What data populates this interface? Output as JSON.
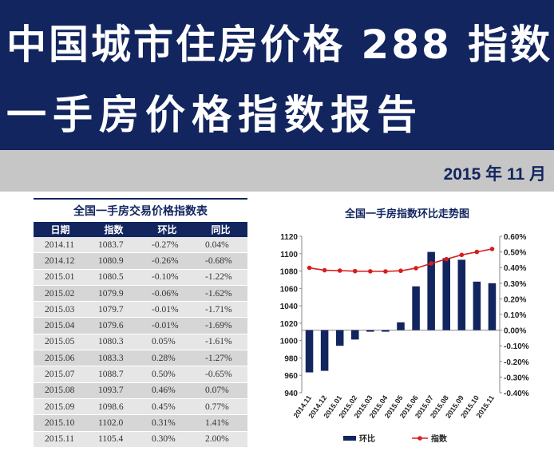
{
  "header": {
    "title_line1": "中国城市住房价格 288 指数",
    "title_line2": "一手房价格指数报告",
    "date": "2015 年 11 月"
  },
  "table": {
    "title": "全国一手房交易价格指数表",
    "headers": [
      "日期",
      "指数",
      "环比",
      "同比"
    ],
    "rows": [
      [
        "2014.11",
        "1083.7",
        "-0.27%",
        "0.04%"
      ],
      [
        "2014.12",
        "1080.9",
        "-0.26%",
        "-0.68%"
      ],
      [
        "2015.01",
        "1080.5",
        "-0.10%",
        "-1.22%"
      ],
      [
        "2015.02",
        "1079.9",
        "-0.06%",
        "-1.62%"
      ],
      [
        "2015.03",
        "1079.7",
        "-0.01%",
        "-1.71%"
      ],
      [
        "2015.04",
        "1079.6",
        "-0.01%",
        "-1.69%"
      ],
      [
        "2015.05",
        "1080.3",
        "0.05%",
        "-1.61%"
      ],
      [
        "2015.06",
        "1083.3",
        "0.28%",
        "-1.27%"
      ],
      [
        "2015.07",
        "1088.7",
        "0.50%",
        "-0.65%"
      ],
      [
        "2015.08",
        "1093.7",
        "0.46%",
        "0.07%"
      ],
      [
        "2015.09",
        "1098.6",
        "0.45%",
        "0.77%"
      ],
      [
        "2015.10",
        "1102.0",
        "0.31%",
        "1.41%"
      ],
      [
        "2015.11",
        "1105.4",
        "0.30%",
        "2.00%"
      ]
    ]
  },
  "chart_data": {
    "type": "bar",
    "title": "全国一手房指数环比走势图",
    "categories": [
      "2014.11",
      "2014.12",
      "2015.01",
      "2015.02",
      "2015.03",
      "2015.04",
      "2015.05",
      "2015.06",
      "2015.07",
      "2015.08",
      "2015.09",
      "2015.10",
      "2015.11"
    ],
    "series": [
      {
        "name": "环比",
        "type": "bar",
        "axis": "right",
        "color": "#12255f",
        "values": [
          -0.27,
          -0.26,
          -0.1,
          -0.06,
          -0.01,
          -0.01,
          0.05,
          0.28,
          0.5,
          0.46,
          0.45,
          0.31,
          0.3
        ]
      },
      {
        "name": "指数",
        "type": "line",
        "axis": "left",
        "color": "#d61e1e",
        "values": [
          1083.7,
          1080.9,
          1080.5,
          1079.9,
          1079.7,
          1079.6,
          1080.3,
          1083.3,
          1088.7,
          1093.7,
          1098.6,
          1102.0,
          1105.4
        ]
      }
    ],
    "y_left": {
      "ylim": [
        940,
        1120
      ],
      "ticks": [
        "940",
        "960",
        "980",
        "1000",
        "1020",
        "1040",
        "1060",
        "1080",
        "1100",
        "1120"
      ]
    },
    "y_right": {
      "ylim": [
        -0.4,
        0.6
      ],
      "ticks": [
        "-0.40%",
        "-0.30%",
        "-0.20%",
        "-0.10%",
        "0.00%",
        "0.10%",
        "0.20%",
        "0.30%",
        "0.40%",
        "0.50%",
        "0.60%"
      ]
    },
    "legend_position": "bottom",
    "grid": false
  }
}
